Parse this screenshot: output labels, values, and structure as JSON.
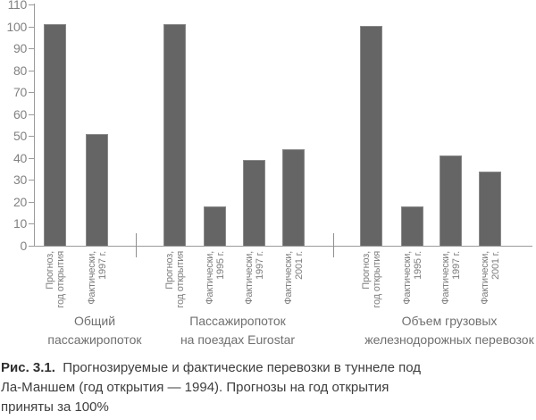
{
  "chart_data": {
    "type": "bar",
    "title": "",
    "xlabel": "",
    "ylabel": "",
    "ylim": [
      0,
      110
    ],
    "yticks": [
      0,
      10,
      20,
      30,
      40,
      50,
      60,
      70,
      80,
      90,
      100,
      110
    ],
    "grid": false,
    "legend": false,
    "bar_color": "#656565",
    "groups": [
      {
        "label_lines": [
          "Общий",
          "пассажиропоток"
        ],
        "bars": [
          {
            "tick_lines": [
              "Прогноз,",
              "год открытия"
            ],
            "value": 101
          },
          {
            "tick_lines": [
              "Фактически,",
              "1997 г."
            ],
            "value": 51
          }
        ]
      },
      {
        "label_lines": [
          "Пассажиропоток",
          "на поездах Eurostar"
        ],
        "bars": [
          {
            "tick_lines": [
              "Прогноз,",
              "год открытия"
            ],
            "value": 101
          },
          {
            "tick_lines": [
              "Фактически,",
              "1995 г."
            ],
            "value": 18
          },
          {
            "tick_lines": [
              "Фактически,",
              "1997 г."
            ],
            "value": 39
          },
          {
            "tick_lines": [
              "Фактически,",
              "2001 г."
            ],
            "value": 44
          }
        ]
      },
      {
        "label_lines": [
          "Объем грузовых",
          "железнодорожных перевозок"
        ],
        "bars": [
          {
            "tick_lines": [
              "Прогноз,",
              "год открытия"
            ],
            "value": 100
          },
          {
            "tick_lines": [
              "Фактически,",
              "1995 г."
            ],
            "value": 18
          },
          {
            "tick_lines": [
              "Фактически,",
              "1997 г."
            ],
            "value": 41
          },
          {
            "tick_lines": [
              "Фактически,",
              "2001 г."
            ],
            "value": 34
          }
        ]
      }
    ]
  },
  "caption": {
    "label": "Рис. 3.1.",
    "line1": "Прогнозируемые и фактические перевозки в туннеле под",
    "line2": "Ла-Маншем (год открытия — 1994). Прогнозы на год открытия",
    "line3": "приняты за 100%"
  },
  "colors": {
    "bar": "#656565",
    "bar_border": "#8a8a8a",
    "axis": "#9b9b9b",
    "tick_label": "#828282",
    "group_label": "#6f6f6f",
    "caption_text": "#3e3e3e"
  }
}
